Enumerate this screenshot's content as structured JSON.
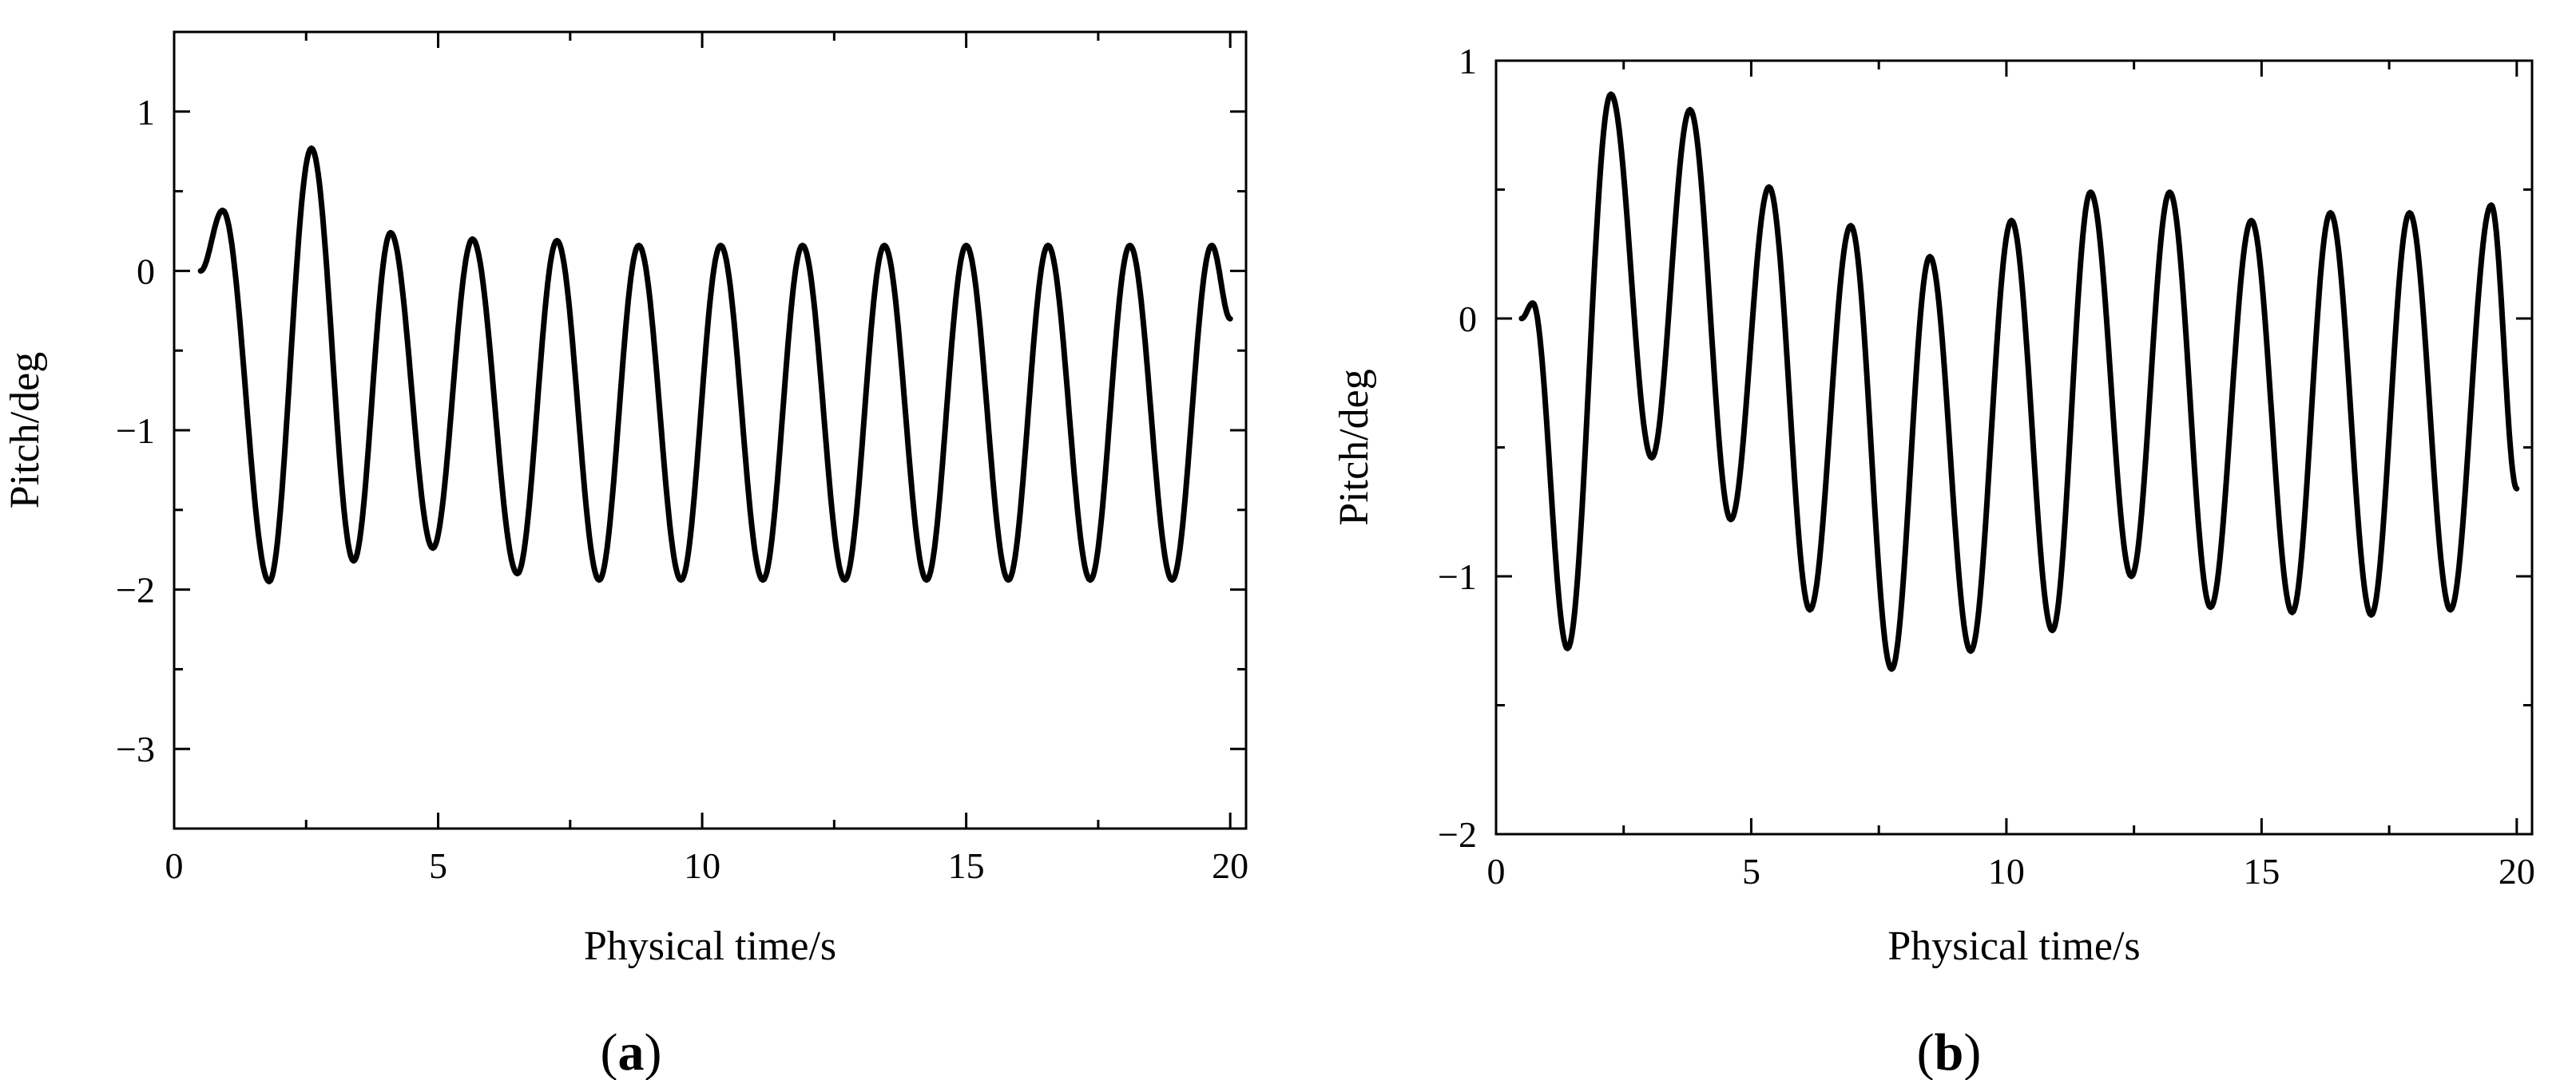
{
  "chart_data": [
    {
      "type": "line",
      "panel_label": "a",
      "xlabel": "Physical time/s",
      "ylabel": "Pitch/deg",
      "xlim": [
        0,
        20.3
      ],
      "ylim": [
        -3.5,
        1.5
      ],
      "xticks": [
        0,
        5,
        10,
        15,
        20
      ],
      "xtick_labels": [
        "0",
        "5",
        "10",
        "15",
        "20"
      ],
      "yticks": [
        1,
        0,
        -1,
        -2,
        -3
      ],
      "ytick_labels": [
        "1",
        "0",
        "−1",
        "−2",
        "−3"
      ],
      "grid": false,
      "series": [
        {
          "x": [
            0.5,
            0.92,
            1.8,
            2.6,
            3.4,
            4.1,
            4.9,
            5.65,
            6.5,
            7.25,
            8.05,
            8.8,
            9.6,
            10.35,
            11.15,
            11.9,
            12.7,
            13.45,
            14.25,
            15.0,
            15.8,
            16.55,
            17.35,
            18.1,
            18.9,
            19.65,
            20.0
          ],
          "y": [
            0.0,
            0.38,
            -1.95,
            0.77,
            -1.82,
            0.24,
            -1.74,
            0.2,
            -1.9,
            0.19,
            -1.94,
            0.16,
            -1.94,
            0.16,
            -1.94,
            0.16,
            -1.94,
            0.16,
            -1.94,
            0.16,
            -1.94,
            0.16,
            -1.94,
            0.16,
            -1.94,
            0.16,
            -0.3
          ]
        }
      ]
    },
    {
      "type": "line",
      "panel_label": "b",
      "xlabel": "Physical time/s",
      "ylabel": "Pitch/deg",
      "xlim": [
        0,
        20.3
      ],
      "ylim": [
        -2,
        1
      ],
      "xticks": [
        0,
        5,
        10,
        15,
        20
      ],
      "xtick_labels": [
        "0",
        "5",
        "10",
        "15",
        "20"
      ],
      "yticks": [
        1,
        0,
        -1,
        -2
      ],
      "ytick_labels": [
        "1",
        "0",
        "−1",
        "−2"
      ],
      "grid": false,
      "series": [
        {
          "x": [
            0.5,
            0.72,
            1.4,
            2.25,
            3.05,
            3.8,
            4.6,
            5.35,
            6.15,
            6.95,
            7.75,
            8.5,
            9.3,
            10.1,
            10.9,
            11.65,
            12.45,
            13.2,
            14.0,
            14.8,
            15.6,
            16.35,
            17.15,
            17.9,
            18.7,
            19.5,
            20.0
          ],
          "y": [
            0.0,
            0.06,
            -1.28,
            0.87,
            -0.54,
            0.81,
            -0.78,
            0.51,
            -1.13,
            0.36,
            -1.36,
            0.24,
            -1.29,
            0.38,
            -1.21,
            0.49,
            -1.0,
            0.49,
            -1.12,
            0.38,
            -1.14,
            0.41,
            -1.15,
            0.41,
            -1.13,
            0.44,
            -0.66
          ]
        }
      ]
    }
  ]
}
